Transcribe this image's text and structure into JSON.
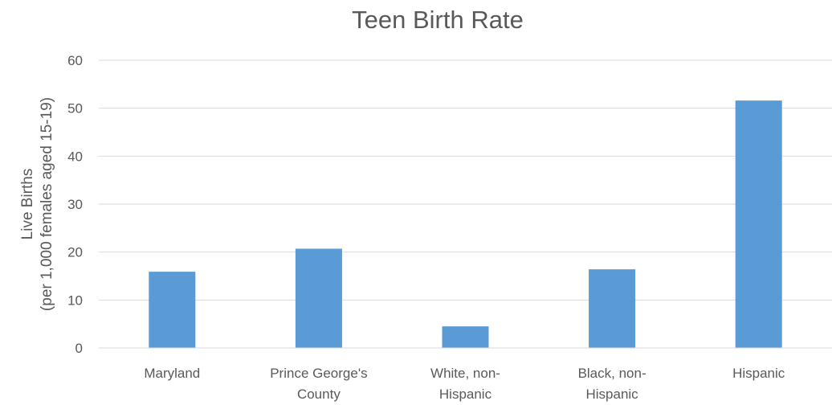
{
  "chart_data": {
    "type": "bar",
    "title": "Teen Birth Rate",
    "xlabel": "",
    "ylabel_lines": [
      "Live Births",
      "(per 1,000 females aged 15-19)"
    ],
    "categories": [
      [
        "Maryland"
      ],
      [
        "Prince George's",
        "County"
      ],
      [
        "White, non-",
        "Hispanic"
      ],
      [
        "Black, non-",
        "Hispanic"
      ],
      [
        "Hispanic"
      ]
    ],
    "values": [
      15.9,
      20.7,
      4.5,
      16.4,
      51.6
    ],
    "ylim": [
      0,
      60
    ],
    "yticks": [
      0,
      10,
      20,
      30,
      40,
      50,
      60
    ],
    "grid": true,
    "legend": "none",
    "bar_color": "#5b9bd5"
  }
}
